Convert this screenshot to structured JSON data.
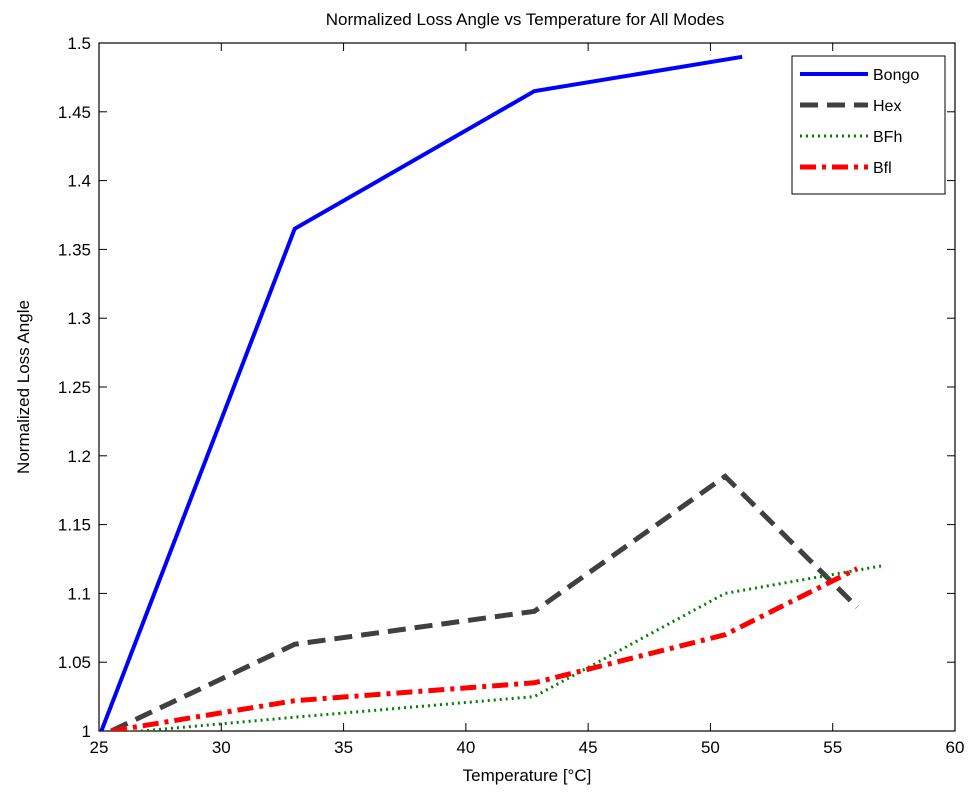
{
  "chart_data": {
    "type": "line",
    "title": "Normalized Loss Angle vs Temperature for All Modes",
    "xlabel": "Temperature [°C]",
    "ylabel": "Normalized Loss Angle",
    "xlim": [
      25,
      60
    ],
    "ylim": [
      1,
      1.5
    ],
    "xticks": [
      25,
      30,
      35,
      40,
      45,
      50,
      55,
      60
    ],
    "yticks": [
      1,
      1.05,
      1.1,
      1.15,
      1.2,
      1.25,
      1.3,
      1.35,
      1.4,
      1.45,
      1.5
    ],
    "xtick_labels": [
      "25",
      "30",
      "35",
      "40",
      "45",
      "50",
      "55",
      "60"
    ],
    "ytick_labels": [
      "1",
      "1.05",
      "1.1",
      "1.15",
      "1.2",
      "1.25",
      "1.3",
      "1.35",
      "1.4",
      "1.45",
      "1.5"
    ],
    "grid": false,
    "legend_position": "top-right",
    "series": [
      {
        "name": "Bongo",
        "color": "#0000ff",
        "style": "solid",
        "x": [
          25.1,
          33.0,
          42.8,
          51.3
        ],
        "y": [
          1.0,
          1.365,
          1.465,
          1.49
        ]
      },
      {
        "name": "Hex",
        "color": "#404040",
        "style": "dashed",
        "x": [
          25.5,
          33.0,
          42.8,
          50.6,
          56.0
        ],
        "y": [
          1.0,
          1.063,
          1.087,
          1.185,
          1.09
        ]
      },
      {
        "name": "BFh",
        "color": "#008000",
        "style": "dotted",
        "x": [
          25.5,
          33.0,
          42.8,
          50.6,
          57.0
        ],
        "y": [
          0.998,
          1.01,
          1.025,
          1.1,
          1.12
        ]
      },
      {
        "name": "Bfl",
        "color": "#ff0000",
        "style": "dashdot",
        "x": [
          25.5,
          33.0,
          42.8,
          50.6,
          56.0
        ],
        "y": [
          1.0,
          1.022,
          1.035,
          1.07,
          1.118
        ]
      }
    ]
  }
}
